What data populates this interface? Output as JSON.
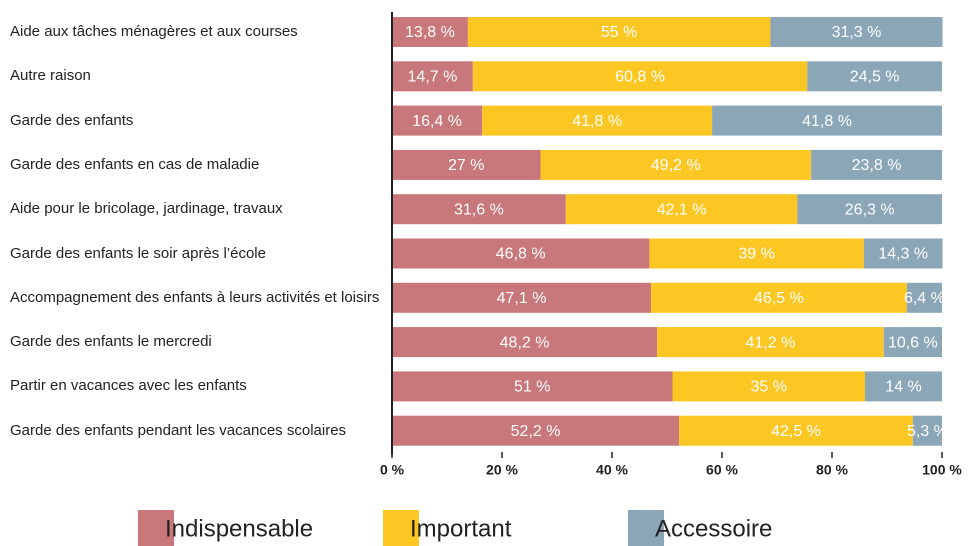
{
  "chart_data": {
    "type": "stacked_barh",
    "categories": [
      "Aide aux tâches ménagères et aux courses",
      "Autre raison",
      "Garde des enfants",
      "Garde des enfants en cas de maladie",
      "Aide pour le bricolage, jardinage, travaux",
      "Garde des enfants le soir après l’école",
      "Accompagnement des enfants à leurs activités et loisirs",
      "Garde des enfants le mercredi",
      "Partir en vacances avec les enfants",
      "Garde des enfants pendant les vacances scolaires"
    ],
    "series": [
      {
        "name": "Indispensable",
        "color": "#c8777a",
        "values": [
          13.8,
          14.7,
          16.4,
          27,
          31.6,
          46.8,
          47.1,
          48.2,
          51,
          52.2
        ],
        "value_labels": [
          "13,8 %",
          "14,7 %",
          "16,4 %",
          "27 %",
          "31,6 %",
          "46,8 %",
          "47,1 %",
          "48,2 %",
          "51 %",
          "52,2 %"
        ]
      },
      {
        "name": "Important",
        "color": "#fcc623",
        "values": [
          55,
          60.8,
          41.8,
          49.2,
          42.1,
          39,
          46.5,
          41.2,
          35,
          42.5
        ],
        "value_labels": [
          "55 %",
          "60,8 %",
          "41,8 %",
          "49,2 %",
          "42,1 %",
          "39 %",
          "46,5 %",
          "41,2 %",
          "35 %",
          "42,5 %"
        ]
      },
      {
        "name": "Accessoire",
        "color": "#8ba6b7",
        "values": [
          31.3,
          24.5,
          41.8,
          23.8,
          26.3,
          14.3,
          6.4,
          10.6,
          14,
          5.3
        ],
        "value_labels": [
          "31,3 %",
          "24,5 %",
          "41,8 %",
          "23,8 %",
          "26,3 %",
          "14,3 %",
          "6,4 %",
          "10,6 %",
          "14 %",
          "5,3 %"
        ]
      }
    ],
    "xlim": [
      0,
      100
    ],
    "xticks": [
      {
        "value": 0,
        "label": "0 %"
      },
      {
        "value": 20,
        "label": "20 %"
      },
      {
        "value": 40,
        "label": "40 %"
      },
      {
        "value": 60,
        "label": "60 %"
      },
      {
        "value": 80,
        "label": "80 %"
      },
      {
        "value": 100,
        "label": "100 %"
      }
    ]
  }
}
